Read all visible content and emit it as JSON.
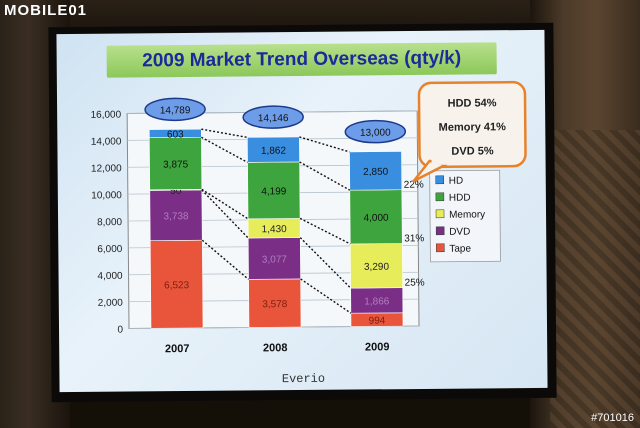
{
  "watermark": "MOBILE01",
  "post_id": "#701016",
  "slide": {
    "title": "2009 Market Trend Overseas (qty/k)",
    "footer": "Everio"
  },
  "callout": {
    "lines": [
      "HDD 54%",
      "Memory 41%",
      "DVD 5%"
    ],
    "border_color": "#e8822a"
  },
  "chart_data": {
    "type": "bar",
    "stacked": true,
    "title": "2009 Market Trend Overseas (qty/k)",
    "categories": [
      "2007",
      "2008",
      "2009"
    ],
    "ylim": [
      0,
      16000
    ],
    "yticks": [
      "0",
      "2,000",
      "4,000",
      "6,000",
      "8,000",
      "10,000",
      "12,000",
      "14,000",
      "16,000"
    ],
    "grid": true,
    "legend_position": "right",
    "totals": [
      "14,789",
      "14,146",
      "13,000"
    ],
    "series": [
      {
        "name": "Tape",
        "color": "#e8553a",
        "values": [
          6523,
          3578,
          994
        ],
        "labels": [
          "6,523",
          "3,578",
          "994"
        ]
      },
      {
        "name": "DVD",
        "color": "#7a2e86",
        "values": [
          3738,
          3077,
          1866
        ],
        "labels": [
          "3,738",
          "3,077",
          "1,866"
        ]
      },
      {
        "name": "Memory",
        "color": "#e6ec5a",
        "values": [
          50,
          1430,
          3290
        ],
        "labels": [
          "50",
          "1,430",
          "3,290"
        ]
      },
      {
        "name": "HDD",
        "color": "#3ea43e",
        "values": [
          3875,
          4199,
          4000
        ],
        "labels": [
          "3,875",
          "4,199",
          "4,000"
        ]
      },
      {
        "name": "HD",
        "color": "#3a8ee0",
        "values": [
          603,
          1862,
          2850
        ],
        "labels": [
          "603",
          "1,862",
          "2,850"
        ]
      }
    ],
    "legend_order": [
      "HD",
      "HDD",
      "Memory",
      "DVD",
      "Tape"
    ],
    "percent_annotations": [
      {
        "category": "2009",
        "series": "HD",
        "text": "22%"
      },
      {
        "category": "2009",
        "series": "HDD",
        "text": "31%"
      },
      {
        "category": "2009",
        "series": "Memory",
        "text": "25%"
      }
    ]
  }
}
